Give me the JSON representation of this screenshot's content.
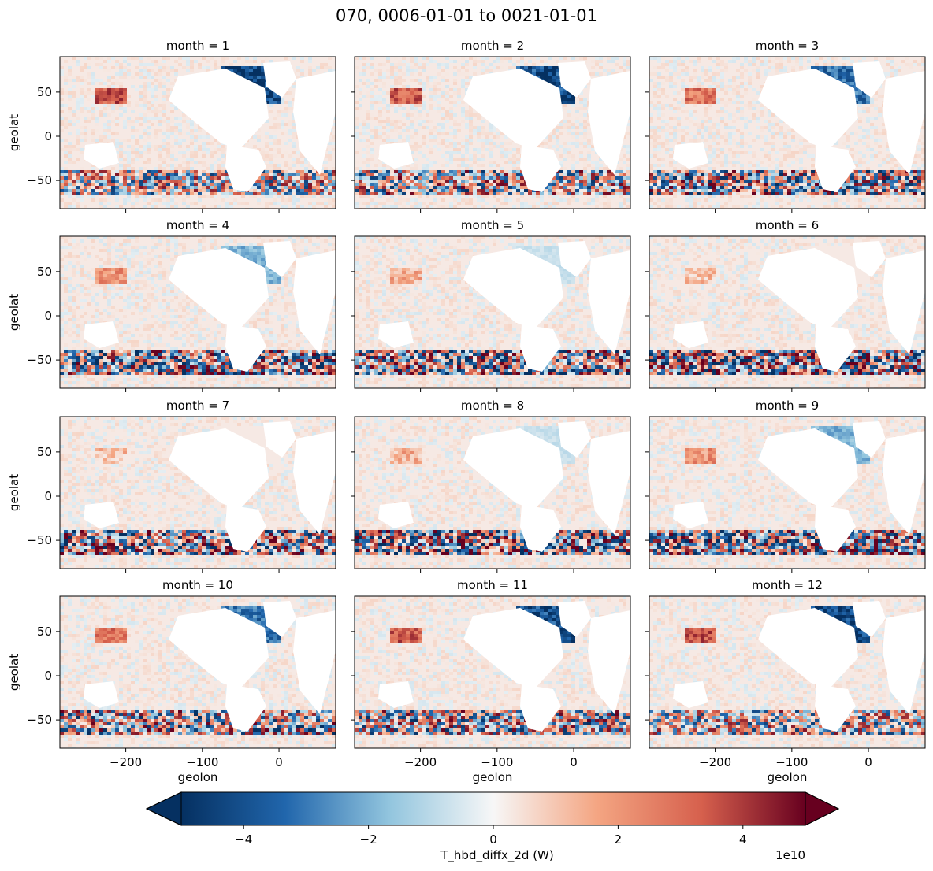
{
  "chart_data": {
    "type": "heatmap",
    "title": "070, 0006-01-01 to 0021-01-01",
    "variable": "T_hbd_diffx_2d",
    "panels": [
      {
        "title": "month = 1",
        "month": 1
      },
      {
        "title": "month = 2",
        "month": 2
      },
      {
        "title": "month = 3",
        "month": 3
      },
      {
        "title": "month = 4",
        "month": 4
      },
      {
        "title": "month = 5",
        "month": 5
      },
      {
        "title": "month = 6",
        "month": 6
      },
      {
        "title": "month = 7",
        "month": 7
      },
      {
        "title": "month = 8",
        "month": 8
      },
      {
        "title": "month = 9",
        "month": 9
      },
      {
        "title": "month = 10",
        "month": 10
      },
      {
        "title": "month = 11",
        "month": 11
      },
      {
        "title": "month = 12",
        "month": 12
      }
    ],
    "xlabel": "geolon",
    "ylabel": "geolat",
    "xlim": [
      -286,
      74
    ],
    "ylim": [
      -82,
      90
    ],
    "xticks": [
      -200,
      -100,
      0
    ],
    "xtick_labels": [
      "−200",
      "−100",
      "0"
    ],
    "yticks": [
      50,
      0,
      -50
    ],
    "ytick_labels": [
      "50",
      "0",
      "−50"
    ],
    "colorbar": {
      "label": "T_hbd_diffx_2d (W)",
      "offset_text": "1e10",
      "vmin": -5,
      "vmax": 5,
      "ticks": [
        -4,
        -2,
        0,
        2,
        4
      ],
      "tick_labels": [
        "−4",
        "−2",
        "0",
        "2",
        "4"
      ],
      "extend": "both",
      "colormap": "RdBu_r"
    }
  },
  "colors": {
    "neg_strong": "#053061",
    "neg_mid": "#2166ac",
    "neg_light": "#92c5de",
    "neutral": "#f7f7f7",
    "pos_light": "#f4a582",
    "pos_mid": "#d6604d",
    "pos_strong": "#67001f",
    "land": "#ffffff"
  }
}
